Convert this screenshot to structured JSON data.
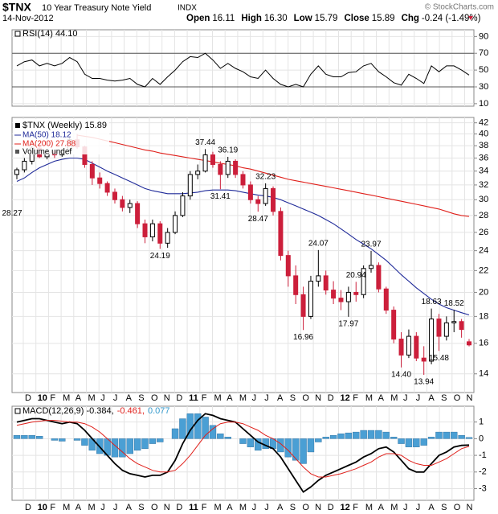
{
  "header": {
    "symbol": "$TNX",
    "name": "10 Year Treasury Note Yield",
    "exchange": "INDX",
    "date": "14-Nov-2012",
    "credit": "© StockCharts.com",
    "quote": [
      {
        "label": "Open",
        "value": "16.11"
      },
      {
        "label": "High",
        "value": "16.30"
      },
      {
        "label": "Low",
        "value": "15.79"
      },
      {
        "label": "Close",
        "value": "15.89"
      },
      {
        "label": "Chg",
        "value": "-0.24 (-1.49%)"
      }
    ]
  },
  "chart_data": [
    {
      "type": "candlestick",
      "legend": "$TNX (Weekly) 15.89",
      "extra_legend": "Volume undef",
      "up_color": "#000000",
      "down_color": "#cc1f3b",
      "log": true,
      "grid": true,
      "ylim": [
        12.9,
        43
      ],
      "yticks": [
        14,
        16,
        18,
        20,
        22,
        24,
        26,
        28,
        30,
        32,
        34,
        36,
        38,
        40,
        42
      ],
      "x_labels": [
        "D",
        "10",
        "F",
        "M",
        "A",
        "M",
        "J",
        "J",
        "A",
        "S",
        "O",
        "N",
        "D",
        "11",
        "F",
        "M",
        "A",
        "M",
        "J",
        "J",
        "A",
        "S",
        "O",
        "N",
        "D",
        "12",
        "F",
        "M",
        "A",
        "M",
        "J",
        "J",
        "A",
        "S",
        "O",
        "N"
      ],
      "candles": [
        [
          33.5,
          34.5,
          32.8,
          34.2
        ],
        [
          34.2,
          36,
          33.8,
          35.5
        ],
        [
          35.5,
          38,
          35,
          37.6
        ],
        [
          37.6,
          38.5,
          36,
          36.2
        ],
        [
          36.2,
          37.5,
          35.8,
          37
        ],
        [
          37,
          37.3,
          36,
          36.5
        ],
        [
          36.5,
          37.5,
          36.2,
          37.2
        ],
        [
          37.2,
          39.5,
          37,
          39
        ],
        [
          39,
          40,
          37.5,
          37.8
        ],
        [
          37.8,
          38,
          34.5,
          35
        ],
        [
          35,
          35.5,
          32,
          33
        ],
        [
          33,
          33.8,
          31.5,
          32.2
        ],
        [
          32.2,
          32.5,
          30.5,
          31
        ],
        [
          31,
          31.5,
          29.5,
          30
        ],
        [
          30,
          30.5,
          28.5,
          29
        ],
        [
          29,
          30,
          28.3,
          29.5
        ],
        [
          29.5,
          29.8,
          26.5,
          27
        ],
        [
          27,
          27.5,
          24.8,
          25.5
        ],
        [
          25.5,
          27.5,
          25,
          27
        ],
        [
          27,
          27.3,
          24.19,
          24.8
        ],
        [
          24.8,
          26.5,
          24.3,
          26
        ],
        [
          26,
          28.5,
          25.8,
          28
        ],
        [
          28,
          31,
          27.8,
          30.5
        ],
        [
          30.5,
          34,
          30,
          33.5
        ],
        [
          33.5,
          35,
          32.8,
          34
        ],
        [
          34,
          37.44,
          33.8,
          36.5
        ],
        [
          36.5,
          37,
          34.5,
          35
        ],
        [
          35,
          35.5,
          31.41,
          33.5
        ],
        [
          33.5,
          36.19,
          33,
          35.5
        ],
        [
          35.5,
          35.8,
          33,
          33.5
        ],
        [
          33.5,
          34,
          31.5,
          32
        ],
        [
          32,
          32.5,
          29.5,
          30
        ],
        [
          30,
          30.5,
          28.47,
          29.5
        ],
        [
          29.5,
          32.23,
          29.2,
          31.5
        ],
        [
          31.5,
          31.8,
          28,
          28.5
        ],
        [
          28.5,
          29,
          23,
          23.5
        ],
        [
          23.5,
          24,
          20.5,
          21.5
        ],
        [
          21.5,
          22.5,
          19,
          19.8
        ],
        [
          19.8,
          20.5,
          16.96,
          18
        ],
        [
          18,
          21.5,
          17.8,
          21
        ],
        [
          21,
          24.07,
          20.5,
          21.5
        ],
        [
          21.5,
          22,
          19.8,
          20.2
        ],
        [
          20.2,
          21,
          19,
          19.5
        ],
        [
          19.5,
          20.2,
          18.5,
          19.2
        ],
        [
          19.2,
          20.5,
          17.97,
          20
        ],
        [
          20,
          20.94,
          19.2,
          19.8
        ],
        [
          19.8,
          22.5,
          19.5,
          22.2
        ],
        [
          22.2,
          23.97,
          21.8,
          22.5
        ],
        [
          22.5,
          22.8,
          20,
          20.3
        ],
        [
          20.3,
          20.5,
          18.2,
          18.5
        ],
        [
          18.5,
          18.8,
          16,
          16.3
        ],
        [
          16.3,
          16.8,
          14.4,
          15.2
        ],
        [
          15.2,
          17,
          15,
          16.5
        ],
        [
          16.5,
          16.8,
          14.8,
          15
        ],
        [
          15,
          15.8,
          13.94,
          14.8
        ],
        [
          14.8,
          18.63,
          14.6,
          17.8
        ],
        [
          17.8,
          18.2,
          15.48,
          16.5
        ],
        [
          16.5,
          18,
          16.2,
          17.5
        ],
        [
          17.5,
          18.52,
          16.8,
          17.6
        ],
        [
          17.6,
          17.8,
          16.4,
          17
        ],
        [
          16.11,
          16.3,
          15.79,
          15.89
        ]
      ],
      "series": [
        {
          "name": "MA(50) 18.12",
          "color": "#1f2a99",
          "values": [
            32.5,
            33,
            33.8,
            34.5,
            35,
            35.5,
            35.8,
            36,
            36,
            35.8,
            35.2,
            34.6,
            34,
            33.5,
            33,
            32.5,
            32,
            31.5,
            31.2,
            31,
            30.8,
            30.8,
            30.8,
            30.9,
            31,
            31.2,
            31.3,
            31.3,
            31.3,
            31.2,
            31,
            30.8,
            30.6,
            30.5,
            30.3,
            30,
            29.6,
            29.2,
            28.8,
            28.4,
            28,
            27.5,
            27,
            26.4,
            25.8,
            25.2,
            24.7,
            24.2,
            23.6,
            23,
            22.3,
            21.6,
            21,
            20.4,
            19.9,
            19.4,
            19,
            18.7,
            18.5,
            18.3,
            18.12
          ]
        },
        {
          "name": "MA(200) 27.88",
          "color": "#e0201b",
          "values": [
            null,
            null,
            null,
            null,
            null,
            null,
            null,
            null,
            39.8,
            39.6,
            39.4,
            39.1,
            38.8,
            38.5,
            38.2,
            37.9,
            37.6,
            37.3,
            37.1,
            36.8,
            36.6,
            36.4,
            36.2,
            36,
            35.8,
            35.6,
            35.4,
            35.2,
            35,
            34.8,
            34.5,
            34.3,
            34,
            33.7,
            33.4,
            33.1,
            32.8,
            32.6,
            32.4,
            32.2,
            32,
            31.8,
            31.6,
            31.4,
            31.2,
            31,
            30.8,
            30.6,
            30.4,
            30.2,
            30,
            29.8,
            29.6,
            29.4,
            29.2,
            29,
            28.8,
            28.5,
            28.2,
            28,
            27.88
          ]
        }
      ],
      "annotations": [
        {
          "value": 37.44,
          "label": "37.44"
        },
        {
          "value": 36.19,
          "label": "36.19"
        },
        {
          "value": 31.41,
          "label": "31.41"
        },
        {
          "value": 32.23,
          "label": "32.23"
        },
        {
          "value": 28.47,
          "label": "28.47"
        },
        {
          "value": 24.19,
          "label": "24.19"
        },
        {
          "value": 28.27,
          "label": "28.27"
        },
        {
          "value": 24.07,
          "label": "24.07"
        },
        {
          "value": 16.96,
          "label": "16.96"
        },
        {
          "value": 20.94,
          "label": "20.94"
        },
        {
          "value": 17.97,
          "label": "17.97"
        },
        {
          "value": 23.97,
          "label": "23.97"
        },
        {
          "value": 14.4,
          "label": "14.40"
        },
        {
          "value": 13.94,
          "label": "13.94"
        },
        {
          "value": 18.63,
          "label": "18.63"
        },
        {
          "value": 15.48,
          "label": "15.48"
        },
        {
          "value": 18.52,
          "label": "18.52"
        }
      ]
    },
    {
      "type": "line",
      "legend": "RSI(14) 44.10",
      "color": "#000000",
      "ylim": [
        7,
        98
      ],
      "yticks": [
        10,
        30,
        50,
        70,
        90
      ],
      "bands": [
        30,
        70
      ],
      "values": [
        55,
        60,
        62,
        55,
        58,
        55,
        58,
        65,
        60,
        45,
        40,
        40,
        38,
        37,
        38,
        40,
        33,
        30,
        40,
        33,
        42,
        50,
        60,
        66,
        65,
        70,
        62,
        52,
        58,
        52,
        48,
        42,
        40,
        50,
        40,
        33,
        30,
        33,
        30,
        45,
        55,
        45,
        42,
        42,
        47,
        48,
        55,
        58,
        48,
        42,
        35,
        32,
        45,
        40,
        34,
        55,
        48,
        55,
        55,
        50,
        44.1
      ]
    },
    {
      "type": "macd",
      "ylim": [
        -3.7,
        1.95
      ],
      "yticks": [
        -3,
        -2,
        -1,
        0,
        1
      ],
      "legend": [
        {
          "text": "MACD(12,26,9) -0.384,",
          "color": "#000000"
        },
        {
          "text": "-0.461,",
          "color": "#e0201b"
        },
        {
          "text": "0.077",
          "color": "#3399cc"
        }
      ],
      "series": [
        {
          "kind": "histogram",
          "color": "#4a9fd4",
          "values": [
            0.2,
            0.2,
            0.2,
            0.15,
            0,
            -0.1,
            -0.15,
            0,
            -0.1,
            -0.4,
            -0.7,
            -0.9,
            -1,
            -1.1,
            -1.1,
            -0.9,
            -0.7,
            -0.6,
            -0.3,
            -0.2,
            0,
            0.6,
            1.2,
            1.5,
            1.5,
            1.3,
            0.8,
            0.3,
            0.1,
            0,
            -0.3,
            -0.5,
            -0.7,
            -0.6,
            -0.6,
            -0.8,
            -1.1,
            -1.3,
            -1.5,
            -0.8,
            -0.2,
            0.1,
            0.2,
            0.3,
            0.35,
            0.4,
            0.5,
            0.5,
            0.5,
            0.4,
            0.1,
            -0.3,
            -0.5,
            -0.5,
            -0.4,
            0.1,
            0.4,
            0.4,
            0.4,
            0.2,
            0.077
          ]
        },
        {
          "kind": "line",
          "color": "#000000",
          "values": [
            1,
            1.1,
            1.2,
            1.2,
            1.1,
            1,
            0.9,
            1,
            0.9,
            0.5,
            0,
            -0.5,
            -1,
            -1.5,
            -1.9,
            -2.1,
            -2.2,
            -2.3,
            -2.2,
            -2.2,
            -2,
            -1.3,
            -0.3,
            0.5,
            1.1,
            1.5,
            1.4,
            1.2,
            1.1,
            1,
            0.6,
            0.2,
            -0.2,
            -0.4,
            -0.6,
            -1.1,
            -1.8,
            -2.5,
            -3.2,
            -2.9,
            -2.5,
            -2.2,
            -2,
            -1.8,
            -1.6,
            -1.4,
            -1.1,
            -0.9,
            -0.6,
            -0.5,
            -0.8,
            -1.3,
            -1.8,
            -2,
            -2,
            -1.5,
            -1,
            -0.8,
            -0.5,
            -0.4,
            -0.384
          ]
        },
        {
          "kind": "line",
          "color": "#e0201b",
          "values": [
            0.8,
            0.9,
            1,
            1.05,
            1.1,
            1.1,
            1.05,
            1,
            1,
            0.9,
            0.7,
            0.4,
            0,
            -0.4,
            -0.8,
            -1.2,
            -1.5,
            -1.7,
            -1.9,
            -2,
            -2,
            -1.9,
            -1.5,
            -1,
            -0.4,
            0.2,
            0.6,
            0.9,
            1,
            1,
            0.9,
            0.7,
            0.5,
            0.2,
            0,
            -0.3,
            -0.7,
            -1.2,
            -1.7,
            -2.1,
            -2.3,
            -2.3,
            -2.2,
            -2.1,
            -1.95,
            -1.8,
            -1.6,
            -1.4,
            -1.1,
            -0.9,
            -0.9,
            -1,
            -1.3,
            -1.5,
            -1.6,
            -1.6,
            -1.4,
            -1.2,
            -0.9,
            -0.6,
            -0.461
          ]
        }
      ]
    }
  ]
}
